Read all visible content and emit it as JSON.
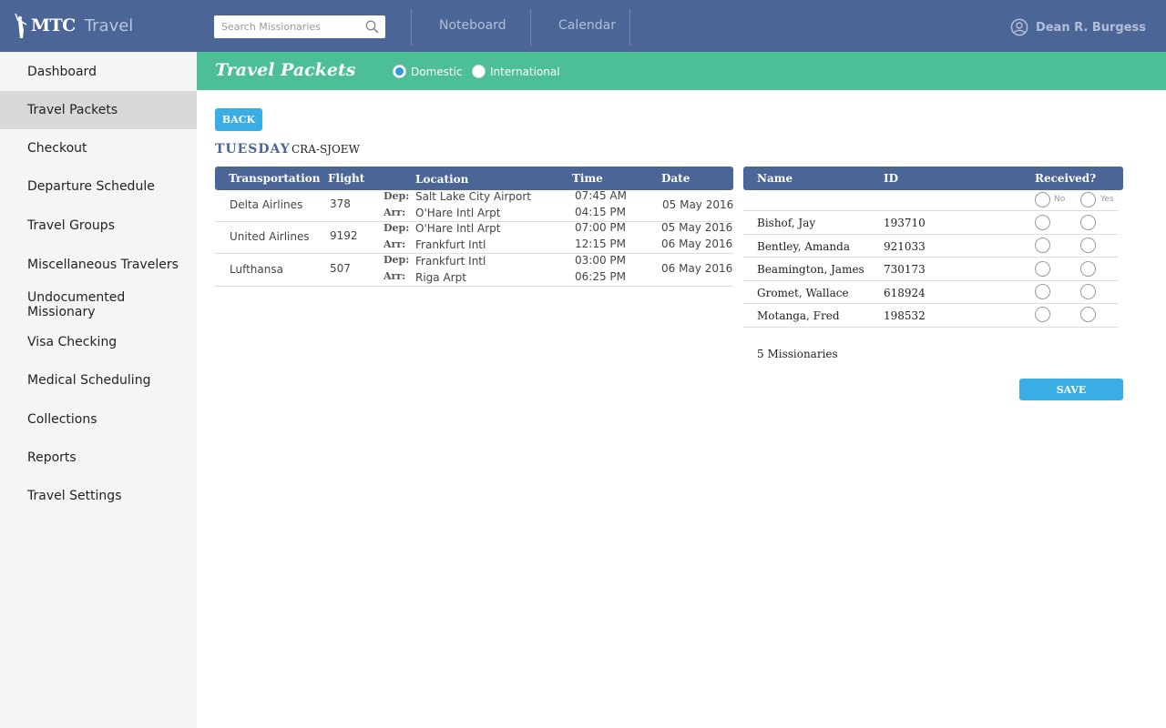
{
  "header": {
    "brand": "MTC",
    "app_name": "Travel",
    "search_placeholder": "Search Missionaries",
    "nav": [
      "Noteboard",
      "Calendar"
    ],
    "user_name": "Dean R. Burgess"
  },
  "sidebar": {
    "items": [
      {
        "label": "Dashboard"
      },
      {
        "label": "Travel Packets",
        "active": true
      },
      {
        "label": "Checkout"
      },
      {
        "label": "Departure Schedule"
      },
      {
        "label": "Travel Groups"
      },
      {
        "label": "Miscellaneous Travelers"
      },
      {
        "label": "Undocumented Missionary"
      },
      {
        "label": "Visa Checking"
      },
      {
        "label": "Medical Scheduling"
      },
      {
        "label": "Collections"
      },
      {
        "label": "Reports"
      },
      {
        "label": "Travel Settings"
      }
    ]
  },
  "page": {
    "title": "Travel Packets",
    "options": [
      {
        "label": "Domestic",
        "selected": true
      },
      {
        "label": "International",
        "selected": false
      }
    ],
    "back_label": "BACK",
    "day": "TUESDAY",
    "code": "CRA-SJOEW"
  },
  "flights": {
    "headers": [
      "Transportation",
      "Flight",
      "Location",
      "Time",
      "Date"
    ],
    "dep_label": "Dep:",
    "arr_label": "Arr:",
    "rows": [
      {
        "carrier": "Delta Airlines",
        "flight": "378",
        "dep_location": "Salt Lake City Airport",
        "arr_location": "O'Hare Intl Arpt",
        "dep_time": "07:45 AM",
        "arr_time": "04:15 PM",
        "date": "05 May 2016"
      },
      {
        "carrier": "United Airlines",
        "flight": "9192",
        "dep_location": "O'Hare Intl Arpt",
        "arr_location": "Frankfurt Intl",
        "dep_time": "07:00 PM",
        "arr_time": "12:15 PM",
        "dep_date": "05 May 2016",
        "arr_date": "06 May 2016"
      },
      {
        "carrier": "Lufthansa",
        "flight": "507",
        "dep_location": "Frankfurt Intl",
        "arr_location": "Riga Arpt",
        "dep_time": "03:00 PM",
        "arr_time": "06:25 PM",
        "date": "06 May 2016"
      }
    ]
  },
  "missionaries": {
    "headers": [
      "Name",
      "ID",
      "Received?"
    ],
    "no_label": "No",
    "yes_label": "Yes",
    "rows": [
      {
        "name": "Bishof, Jay",
        "id": "193710"
      },
      {
        "name": "Bentley, Amanda",
        "id": "921033"
      },
      {
        "name": "Beamington, James",
        "id": "730173"
      },
      {
        "name": "Gromet, Wallace",
        "id": "618924"
      },
      {
        "name": "Motanga, Fred",
        "id": "198532"
      }
    ],
    "count_label": "5 Missionaries",
    "save_label": "SAVE"
  }
}
